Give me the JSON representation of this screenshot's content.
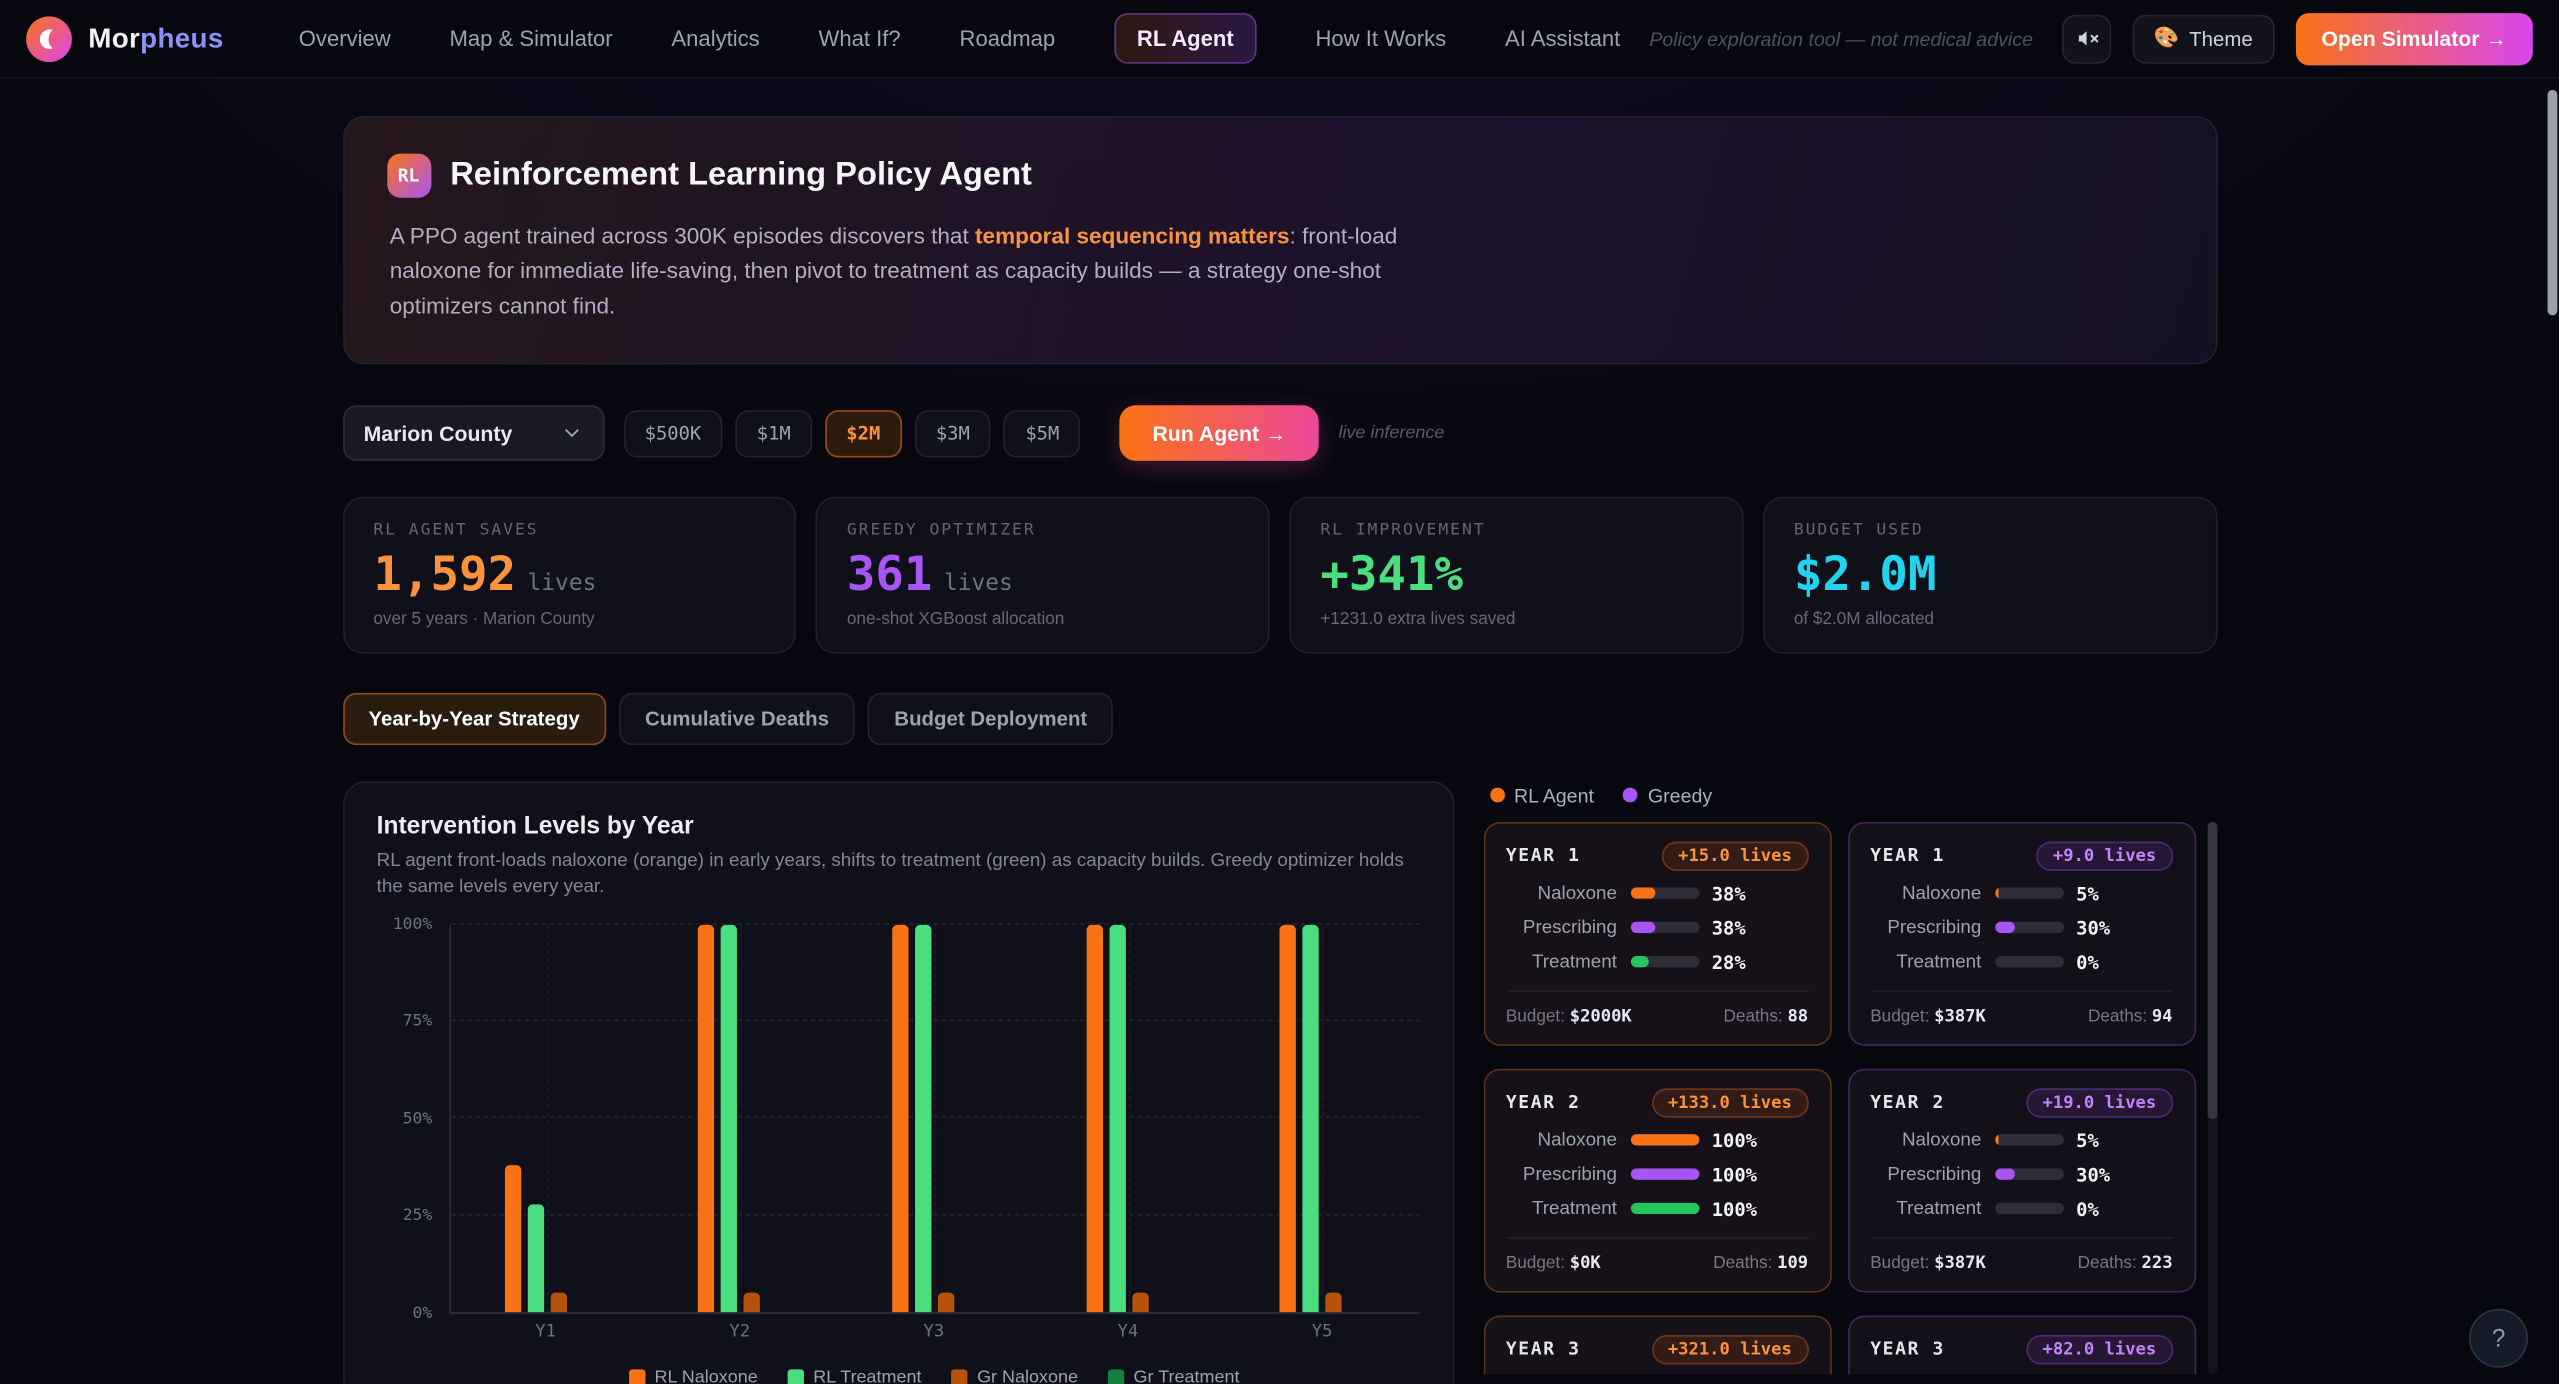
{
  "nav": {
    "brand_prefix": "Mor",
    "brand_suffix": "pheus",
    "items": [
      {
        "label": "Overview",
        "active": false
      },
      {
        "label": "Map & Simulator",
        "active": false
      },
      {
        "label": "Analytics",
        "active": false
      },
      {
        "label": "What If?",
        "active": false
      },
      {
        "label": "Roadmap",
        "active": false
      },
      {
        "label": "RL Agent",
        "active": true
      },
      {
        "label": "How It Works",
        "active": false
      },
      {
        "label": "AI Assistant",
        "active": false
      }
    ],
    "disclaimer": "Policy exploration tool — not medical advice",
    "theme_icon": "🎨",
    "theme_label": "Theme",
    "open_simulator_label": "Open Simulator →"
  },
  "hero": {
    "badge": "RL",
    "title": "Reinforcement Learning Policy Agent",
    "description_pre": "A PPO agent trained across 300K episodes discovers that ",
    "description_highlight": "temporal sequencing matters",
    "description_post": ": front-load naloxone for immediate life-saving, then pivot to treatment as capacity builds — a strategy one-shot optimizers cannot find."
  },
  "controls": {
    "county_select": "Marion County",
    "budget_options": [
      "$500K",
      "$1M",
      "$2M",
      "$3M",
      "$5M"
    ],
    "budget_active": "$2M",
    "run_button": "Run Agent →",
    "live_note": "live inference"
  },
  "stats": [
    {
      "label": "RL AGENT SAVES",
      "value": "1,592",
      "suffix": "lives",
      "sub": "over 5 years · Marion County",
      "color": "#fb923c"
    },
    {
      "label": "GREEDY OPTIMIZER",
      "value": "361",
      "suffix": "lives",
      "sub": "one-shot XGBoost allocation",
      "color": "#a855f7"
    },
    {
      "label": "RL IMPROVEMENT",
      "value": "+341%",
      "suffix": "",
      "sub": "+1231.0 extra lives saved",
      "color": "#4ade80"
    },
    {
      "label": "BUDGET USED",
      "value": "$2.0M",
      "suffix": "",
      "sub": "of $2.0M allocated",
      "color": "#22d3ee"
    }
  ],
  "tabs": [
    {
      "label": "Year-by-Year Strategy",
      "active": true
    },
    {
      "label": "Cumulative Deaths",
      "active": false
    },
    {
      "label": "Budget Deployment",
      "active": false
    }
  ],
  "chart_data": {
    "type": "bar",
    "title": "Intervention Levels by Year",
    "subtitle": "RL agent front-loads naloxone (orange) in early years, shifts to treatment (green) as capacity builds. Greedy optimizer holds the same levels every year.",
    "categories": [
      "Y1",
      "Y2",
      "Y3",
      "Y4",
      "Y5"
    ],
    "series": [
      {
        "name": "RL Naloxone",
        "color": "#f97316",
        "values": [
          38,
          100,
          100,
          100,
          100
        ]
      },
      {
        "name": "RL Treatment",
        "color": "#4ade80",
        "values": [
          28,
          100,
          100,
          100,
          100
        ]
      },
      {
        "name": "Gr Naloxone",
        "color": "#b45309",
        "values": [
          5,
          5,
          5,
          5,
          5
        ]
      },
      {
        "name": "Gr Treatment",
        "color": "#15803d",
        "values": [
          0,
          0,
          0,
          0,
          0
        ]
      }
    ],
    "ylim": [
      0,
      100
    ],
    "yticks": [
      0,
      25,
      50,
      75,
      100
    ],
    "ytick_labels": [
      "0%",
      "25%",
      "50%",
      "75%",
      "100%"
    ],
    "legend_position": "bottom"
  },
  "comparison": {
    "legend": [
      {
        "label": "RL Agent",
        "color": "#f97316"
      },
      {
        "label": "Greedy",
        "color": "#a855f7"
      }
    ],
    "budget_label": "Budget:",
    "deaths_label": "Deaths:",
    "columns": [
      {
        "kind": "rl",
        "years": [
          {
            "year": "YEAR 1",
            "lives": "+15.0 lives",
            "budget": "$2000K",
            "deaths": "88",
            "rows": [
              {
                "label": "Naloxone",
                "pct": 38,
                "value": "38%",
                "color": "#f97316"
              },
              {
                "label": "Prescribing",
                "pct": 38,
                "value": "38%",
                "color": "#a855f7"
              },
              {
                "label": "Treatment",
                "pct": 28,
                "value": "28%",
                "color": "#22c55e"
              }
            ]
          },
          {
            "year": "YEAR 2",
            "lives": "+133.0 lives",
            "budget": "$0K",
            "deaths": "109",
            "rows": [
              {
                "label": "Naloxone",
                "pct": 100,
                "value": "100%",
                "color": "#f97316"
              },
              {
                "label": "Prescribing",
                "pct": 100,
                "value": "100%",
                "color": "#a855f7"
              },
              {
                "label": "Treatment",
                "pct": 100,
                "value": "100%",
                "color": "#22c55e"
              }
            ]
          },
          {
            "year": "YEAR 3",
            "lives": "+321.0 lives",
            "budget": "",
            "deaths": "",
            "rows": []
          }
        ]
      },
      {
        "kind": "greedy",
        "years": [
          {
            "year": "YEAR 1",
            "lives": "+9.0 lives",
            "budget": "$387K",
            "deaths": "94",
            "rows": [
              {
                "label": "Naloxone",
                "pct": 5,
                "value": "5%",
                "color": "#f97316"
              },
              {
                "label": "Prescribing",
                "pct": 30,
                "value": "30%",
                "color": "#a855f7"
              },
              {
                "label": "Treatment",
                "pct": 0,
                "value": "0%",
                "color": "#22c55e"
              }
            ]
          },
          {
            "year": "YEAR 2",
            "lives": "+19.0 lives",
            "budget": "$387K",
            "deaths": "223",
            "rows": [
              {
                "label": "Naloxone",
                "pct": 5,
                "value": "5%",
                "color": "#f97316"
              },
              {
                "label": "Prescribing",
                "pct": 30,
                "value": "30%",
                "color": "#a855f7"
              },
              {
                "label": "Treatment",
                "pct": 0,
                "value": "0%",
                "color": "#22c55e"
              }
            ]
          },
          {
            "year": "YEAR 3",
            "lives": "+82.0 lives",
            "budget": "",
            "deaths": "",
            "rows": []
          }
        ]
      }
    ]
  },
  "help_button": "?"
}
